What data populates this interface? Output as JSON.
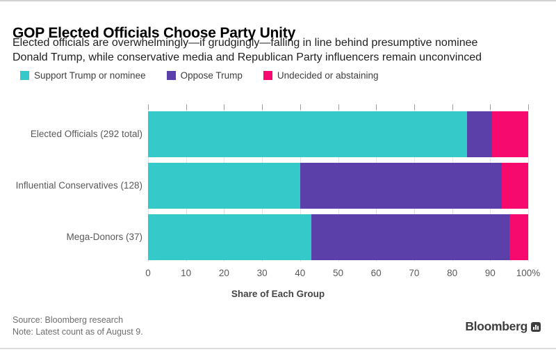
{
  "page": {
    "title": "GOP Elected Officials Choose Party Unity",
    "subtitle_lines": [
      "Elected officials are overwhelmingly—if grudgingly—falling in line behind presumptive nominee",
      "Donald Trump, while conservative media and Republican Party influencers remain unconvinced"
    ],
    "source": "Source: Bloomberg research",
    "note": "Note: Latest count as of August 9.",
    "brand": "Bloomberg"
  },
  "colors": {
    "support": "#36c9c9",
    "oppose": "#5c40a9",
    "undecided": "#f70a6e",
    "gridline": "#e4e4e4",
    "tick": "#9b9b9b",
    "axis_text": "#595959"
  },
  "chart_data": {
    "type": "bar",
    "orientation": "horizontal",
    "stacked": true,
    "title": "GOP Elected Officials Choose Party Unity",
    "categories": [
      "Elected Officials (292 total)",
      "Influential Conservatives (128)",
      "Mega-Donors (37)"
    ],
    "series": [
      {
        "key": "support",
        "name": "Support Trump or nominee",
        "color": "#36c9c9",
        "values": [
          84,
          40,
          43
        ]
      },
      {
        "key": "oppose",
        "name": "Oppose Trump",
        "color": "#5c40a9",
        "values": [
          6.5,
          53,
          52
        ]
      },
      {
        "key": "undecided",
        "name": "Undecided or abstaining",
        "color": "#f70a6e",
        "values": [
          9.5,
          7,
          5
        ]
      }
    ],
    "xlabel": "Share of Each Group",
    "ylabel": "",
    "xlim": [
      0,
      100
    ],
    "xticks": [
      0,
      10,
      20,
      30,
      40,
      50,
      60,
      70,
      80,
      90,
      100
    ],
    "xtick_labels": [
      "0",
      "10",
      "20",
      "30",
      "40",
      "50",
      "60",
      "70",
      "80",
      "90",
      "100%"
    ],
    "grid": true,
    "legend_position": "top-left"
  }
}
